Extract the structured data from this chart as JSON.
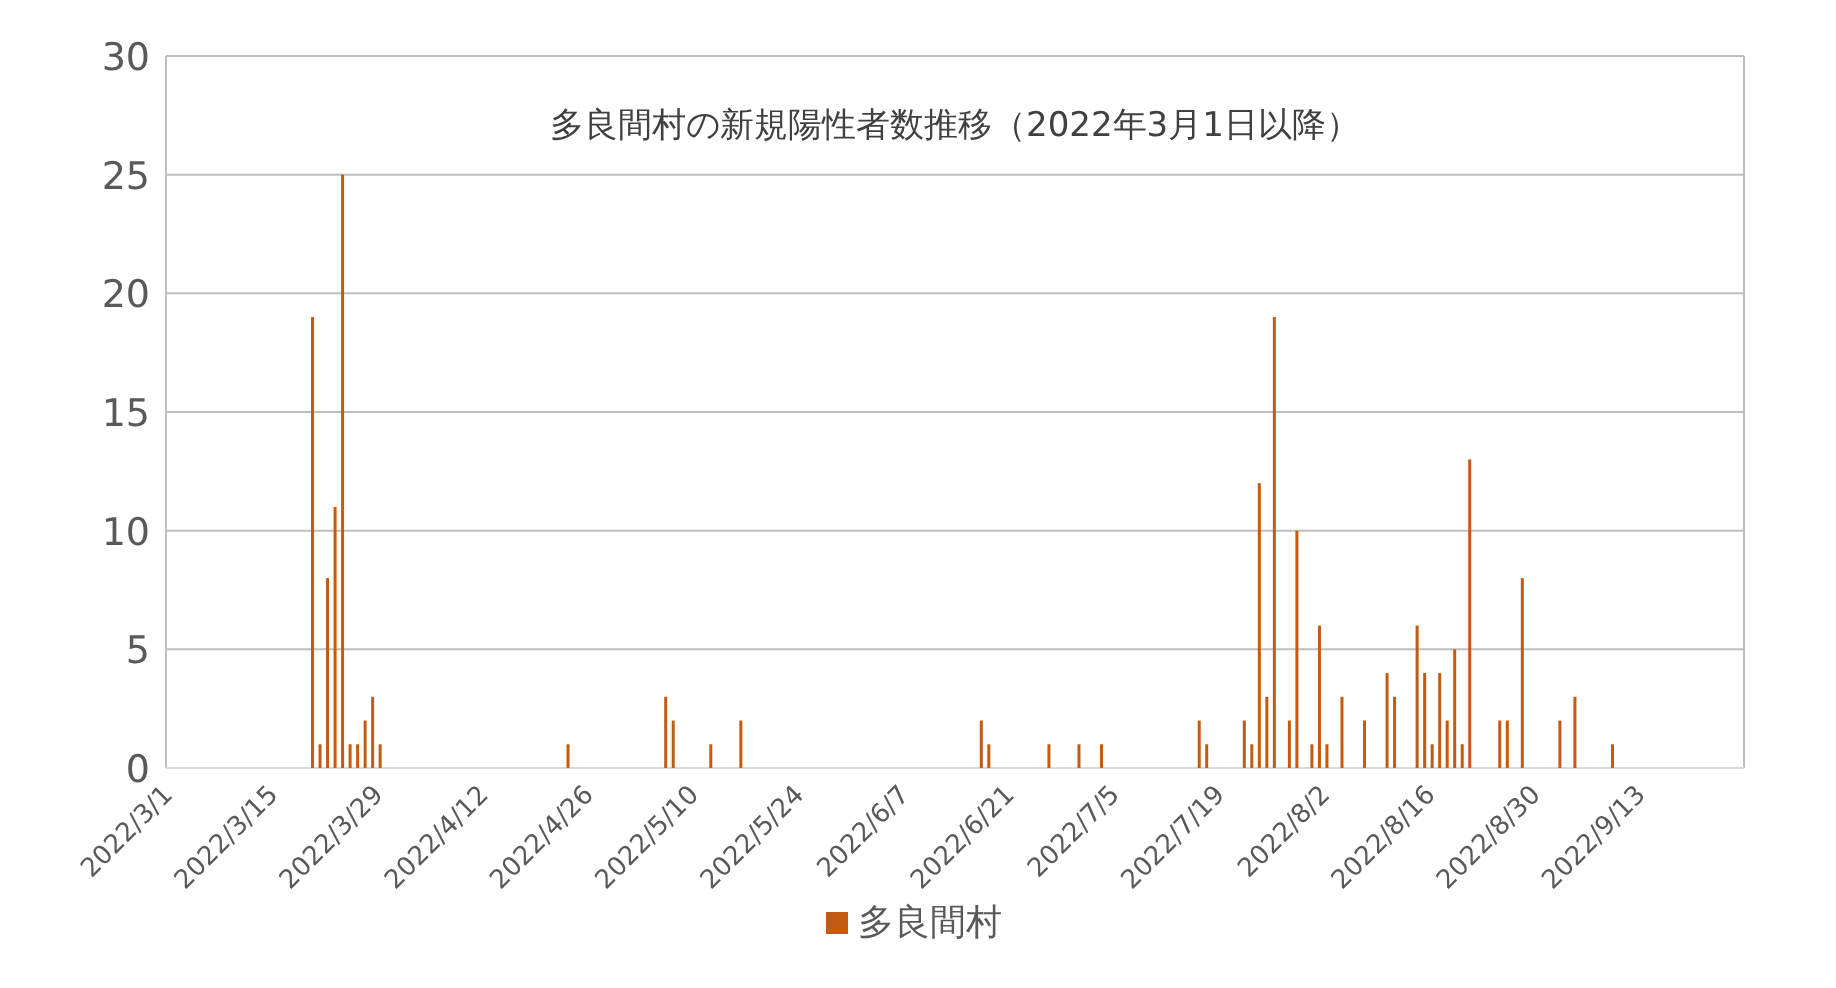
{
  "chart_data": {
    "type": "bar",
    "title": "多良間村の新規陽性者数推移（2022年3月1日以降）",
    "x": [
      "2022-03-20",
      "2022-03-21",
      "2022-03-22",
      "2022-03-23",
      "2022-03-24",
      "2022-03-25",
      "2022-03-26",
      "2022-03-27",
      "2022-03-28",
      "2022-03-29",
      "2022-04-23",
      "2022-05-06",
      "2022-05-07",
      "2022-05-12",
      "2022-05-16",
      "2022-06-17",
      "2022-06-18",
      "2022-06-26",
      "2022-06-30",
      "2022-07-03",
      "2022-07-16",
      "2022-07-17",
      "2022-07-22",
      "2022-07-23",
      "2022-07-24",
      "2022-07-25",
      "2022-07-26",
      "2022-07-28",
      "2022-07-29",
      "2022-07-31",
      "2022-08-01",
      "2022-08-02",
      "2022-08-04",
      "2022-08-07",
      "2022-08-10",
      "2022-08-11",
      "2022-08-14",
      "2022-08-15",
      "2022-08-16",
      "2022-08-17",
      "2022-08-18",
      "2022-08-19",
      "2022-08-20",
      "2022-08-21",
      "2022-08-25",
      "2022-08-26",
      "2022-08-28",
      "2022-09-02",
      "2022-09-04",
      "2022-09-09"
    ],
    "series": [
      {
        "name": "多良間村",
        "color": "#c55a11",
        "values": [
          19,
          1,
          8,
          11,
          25,
          1,
          1,
          2,
          3,
          1,
          1,
          3,
          2,
          1,
          2,
          2,
          1,
          1,
          1,
          1,
          2,
          1,
          2,
          1,
          12,
          3,
          19,
          2,
          10,
          1,
          6,
          1,
          3,
          2,
          4,
          3,
          6,
          4,
          1,
          4,
          2,
          5,
          1,
          13,
          2,
          2,
          8,
          2,
          3,
          1
        ]
      }
    ],
    "xlim": [
      "2022-03-01",
      "2022-09-27"
    ],
    "xticks": [
      {
        "value": "2022-03-01",
        "label": "2022/3/1"
      },
      {
        "value": "2022-03-15",
        "label": "2022/3/15"
      },
      {
        "value": "2022-03-29",
        "label": "2022/3/29"
      },
      {
        "value": "2022-04-12",
        "label": "2022/4/12"
      },
      {
        "value": "2022-04-26",
        "label": "2022/4/26"
      },
      {
        "value": "2022-05-10",
        "label": "2022/5/10"
      },
      {
        "value": "2022-05-24",
        "label": "2022/5/24"
      },
      {
        "value": "2022-06-07",
        "label": "2022/6/7"
      },
      {
        "value": "2022-06-21",
        "label": "2022/6/21"
      },
      {
        "value": "2022-07-05",
        "label": "2022/7/5"
      },
      {
        "value": "2022-07-19",
        "label": "2022/7/19"
      },
      {
        "value": "2022-08-02",
        "label": "2022/8/2"
      },
      {
        "value": "2022-08-16",
        "label": "2022/8/16"
      },
      {
        "value": "2022-08-30",
        "label": "2022/8/30"
      },
      {
        "value": "2022-09-13",
        "label": "2022/9/13"
      }
    ],
    "ylim": [
      0,
      30
    ],
    "yticks": [
      0,
      5,
      10,
      15,
      20,
      25,
      30
    ],
    "grid": "y",
    "legend": "bottom"
  }
}
